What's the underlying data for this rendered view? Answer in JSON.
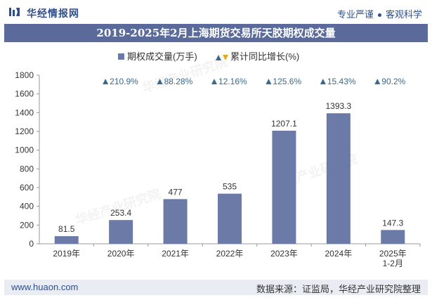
{
  "brand": "华经情报网",
  "slogan": {
    "left": "专业严谨",
    "right": "客观科学"
  },
  "footer": {
    "website": "www.huaon.com",
    "source": "数据来源：证监局，华经产业研究院整理"
  },
  "watermark": "华经产业研究院",
  "colors": {
    "bar": "#6b7aa6",
    "growth": "#3a6a8c",
    "title_bg": "#5a6a9a",
    "up": "#3a6a8c",
    "down": "#e6a817"
  },
  "chart_data": {
    "type": "bar",
    "title": "2019-2025年2月上海期货交易所天胶期权成交量",
    "categories": [
      "2019年",
      "2020年",
      "2021年",
      "2022年",
      "2023年",
      "2024年",
      "2025年\n1-2月"
    ],
    "series": [
      {
        "name": "期权成交量(万手)",
        "values": [
          81.5,
          253.4,
          477,
          535,
          1207.1,
          1393.3,
          147.3
        ]
      },
      {
        "name": "累计同比增长(%)",
        "values": [
          null,
          210.9,
          88.28,
          12.16,
          125.6,
          15.43,
          90.2
        ]
      }
    ],
    "value_labels": [
      "81.5",
      "253.4",
      "477",
      "535",
      "1207.1",
      "1393.3",
      "147.3"
    ],
    "growth_labels": [
      "",
      "210.9%",
      "88.28%",
      "12.16%",
      "125.6%",
      "15.43%",
      "90.2%"
    ],
    "ylim": [
      0,
      1800
    ],
    "yticks": [
      0,
      200,
      400,
      600,
      800,
      1000,
      1200,
      1400,
      1600,
      1800
    ],
    "legend_position": "top",
    "grid": false
  }
}
